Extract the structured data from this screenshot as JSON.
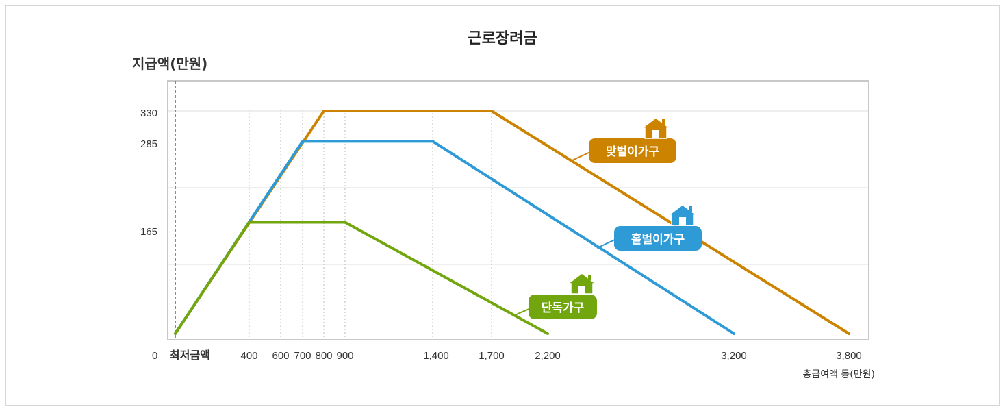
{
  "chart_data": {
    "type": "line",
    "title": "근로장려금",
    "ylabel": "지급액(만원)",
    "xlabel": "총급여액 등(만원)",
    "x_origin_label": "0",
    "x_min_label": "최저금액",
    "x_ticks": [
      "400",
      "600",
      "700",
      "800",
      "900",
      "1,400",
      "1,700",
      "2,200",
      "3,200",
      "3,800"
    ],
    "y_ticks": [
      "330",
      "285",
      "165"
    ],
    "series": [
      {
        "name": "맞벌이가구",
        "color": "#cc8400",
        "points": [
          {
            "x": "최저금액",
            "y": 0
          },
          {
            "x": 800,
            "y": 330
          },
          {
            "x": 1700,
            "y": 330
          },
          {
            "x": 3800,
            "y": 0
          }
        ]
      },
      {
        "name": "홑벌이가구",
        "color": "#2e9ad6",
        "points": [
          {
            "x": "최저금액",
            "y": 0
          },
          {
            "x": 700,
            "y": 285
          },
          {
            "x": 1400,
            "y": 285
          },
          {
            "x": 3200,
            "y": 0
          }
        ]
      },
      {
        "name": "단독가구",
        "color": "#72a60f",
        "points": [
          {
            "x": "최저금액",
            "y": 0
          },
          {
            "x": 400,
            "y": 165
          },
          {
            "x": 900,
            "y": 165
          },
          {
            "x": 2200,
            "y": 0
          }
        ]
      }
    ],
    "grid": true,
    "legend": "inline labels with house icons"
  }
}
